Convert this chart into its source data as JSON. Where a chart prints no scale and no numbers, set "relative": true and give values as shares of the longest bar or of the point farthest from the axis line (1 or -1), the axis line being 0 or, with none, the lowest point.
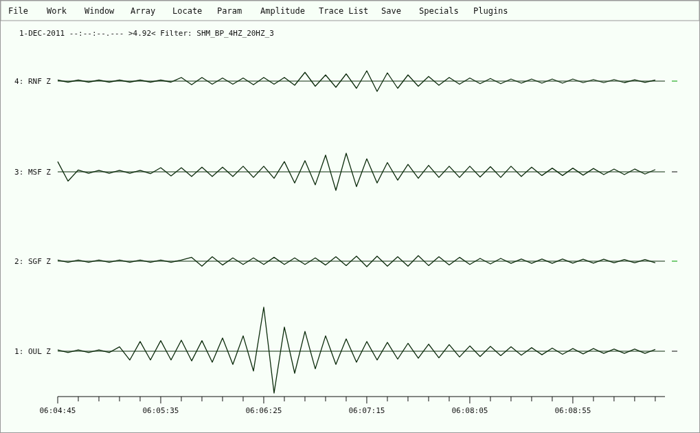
{
  "chart_data": [
    {
      "type": "other",
      "annotations": [
        "File",
        "Work",
        "Window",
        "Array",
        "Locate",
        "Param",
        "Amplitude",
        "Trace List",
        "Save",
        "Specials",
        "Plugins"
      ]
    },
    {
      "type": "line",
      "relative": true,
      "tick_labels": false,
      "title": "1-DEC-2011 --:--:--.---   >4.92<    Filter: SHM_BP_4HZ_20HZ_3",
      "xlim": [
        6.079167,
        6.16103
      ],
      "x": [
        6.079167,
        6.080556,
        6.081944,
        6.083333,
        6.084722,
        6.086111,
        6.0875,
        6.088889,
        6.090278,
        6.091667,
        6.093056,
        6.094444,
        6.095833,
        6.097222,
        6.098611,
        6.1,
        6.101389,
        6.102778,
        6.104167,
        6.105556,
        6.106944,
        6.108333,
        6.109722,
        6.111111,
        6.1125,
        6.113889,
        6.115278,
        6.116667,
        6.118056,
        6.119444,
        6.120833,
        6.122222,
        6.123611,
        6.125,
        6.126389,
        6.127778,
        6.129167,
        6.130556,
        6.131944,
        6.133333,
        6.134722,
        6.136111,
        6.1375,
        6.138889,
        6.140278,
        6.141667,
        6.143056,
        6.144444,
        6.145833,
        6.147222,
        6.148611,
        6.15,
        6.151389,
        6.152778,
        6.154167,
        6.155556,
        6.156944,
        6.158333,
        6.159722
      ],
      "series": [
        {
          "name": "4: RNF Z",
          "color": "#0b2b0b",
          "values": [
            0.1,
            -0.1,
            0.1,
            -0.1,
            0.1,
            -0.1,
            0.1,
            -0.1,
            0.1,
            -0.1,
            0.1,
            -0.1,
            0.35,
            -0.35,
            0.35,
            -0.3,
            0.3,
            -0.3,
            0.3,
            -0.35,
            0.35,
            -0.3,
            0.35,
            -0.4,
            0.85,
            -0.5,
            0.6,
            -0.6,
            0.7,
            -0.7,
            1,
            -1,
            0.8,
            -0.7,
            0.6,
            -0.5,
            0.45,
            -0.4,
            0.35,
            -0.3,
            0.3,
            -0.25,
            0.25,
            -0.25,
            0.2,
            -0.2,
            0.2,
            -0.2,
            0.2,
            -0.2,
            0.2,
            -0.15,
            0.15,
            -0.15,
            0.15,
            -0.15,
            0.12,
            -0.12,
            0.1
          ]
        }
      ]
    },
    {
      "type": "line",
      "relative": true,
      "tick_labels": false,
      "xlim": [
        6.079167,
        6.16103
      ],
      "x": [
        6.079167,
        6.080556,
        6.081944,
        6.083333,
        6.084722,
        6.086111,
        6.0875,
        6.088889,
        6.090278,
        6.091667,
        6.093056,
        6.094444,
        6.095833,
        6.097222,
        6.098611,
        6.1,
        6.101389,
        6.102778,
        6.104167,
        6.105556,
        6.106944,
        6.108333,
        6.109722,
        6.111111,
        6.1125,
        6.113889,
        6.115278,
        6.116667,
        6.118056,
        6.119444,
        6.120833,
        6.122222,
        6.123611,
        6.125,
        6.126389,
        6.127778,
        6.129167,
        6.130556,
        6.131944,
        6.133333,
        6.134722,
        6.136111,
        6.1375,
        6.138889,
        6.140278,
        6.141667,
        6.143056,
        6.144444,
        6.145833,
        6.147222,
        6.148611,
        6.15,
        6.151389,
        6.152778,
        6.154167,
        6.155556,
        6.156944,
        6.158333,
        6.159722
      ],
      "series": [
        {
          "name": "3: MSF Z",
          "color": "#0b2b0b",
          "values": [
            0.55,
            -0.5,
            0.1,
            -0.08,
            0.08,
            -0.08,
            0.08,
            -0.08,
            0.08,
            -0.1,
            0.22,
            -0.22,
            0.22,
            -0.25,
            0.25,
            -0.25,
            0.25,
            -0.25,
            0.3,
            -0.3,
            0.3,
            -0.35,
            0.55,
            -0.6,
            0.6,
            -0.7,
            0.9,
            -1,
            1,
            -0.8,
            0.7,
            -0.6,
            0.5,
            -0.45,
            0.4,
            -0.35,
            0.35,
            -0.3,
            0.3,
            -0.3,
            0.3,
            -0.28,
            0.28,
            -0.3,
            0.3,
            -0.25,
            0.25,
            -0.2,
            0.2,
            -0.2,
            0.2,
            -0.18,
            0.18,
            -0.15,
            0.15,
            -0.15,
            0.15,
            -0.12,
            0.12
          ]
        }
      ]
    },
    {
      "type": "line",
      "relative": true,
      "tick_labels": false,
      "xlim": [
        6.079167,
        6.16103
      ],
      "x": [
        6.079167,
        6.080556,
        6.081944,
        6.083333,
        6.084722,
        6.086111,
        6.0875,
        6.088889,
        6.090278,
        6.091667,
        6.093056,
        6.094444,
        6.095833,
        6.097222,
        6.098611,
        6.1,
        6.101389,
        6.102778,
        6.104167,
        6.105556,
        6.106944,
        6.108333,
        6.109722,
        6.111111,
        6.1125,
        6.113889,
        6.115278,
        6.116667,
        6.118056,
        6.119444,
        6.120833,
        6.122222,
        6.123611,
        6.125,
        6.126389,
        6.127778,
        6.129167,
        6.130556,
        6.131944,
        6.133333,
        6.134722,
        6.136111,
        6.1375,
        6.138889,
        6.140278,
        6.141667,
        6.143056,
        6.144444,
        6.145833,
        6.147222,
        6.148611,
        6.15,
        6.151389,
        6.152778,
        6.154167,
        6.155556,
        6.156944,
        6.158333,
        6.159722
      ],
      "series": [
        {
          "name": "2: SGF Z",
          "color": "#0b2b0b",
          "values": [
            0.2,
            -0.2,
            0.2,
            -0.2,
            0.2,
            -0.2,
            0.2,
            -0.2,
            0.2,
            -0.2,
            0.2,
            -0.2,
            0.2,
            0.7,
            -0.9,
            0.8,
            -0.7,
            0.6,
            -0.6,
            0.6,
            -0.6,
            0.7,
            -0.6,
            0.6,
            -0.6,
            0.6,
            -0.7,
            0.8,
            -0.8,
            0.9,
            -1,
            0.9,
            -0.9,
            0.8,
            -0.9,
            1,
            -0.8,
            0.8,
            -0.7,
            0.7,
            -0.6,
            0.5,
            -0.5,
            0.5,
            -0.4,
            0.4,
            -0.4,
            0.4,
            -0.4,
            0.4,
            -0.35,
            0.35,
            -0.35,
            0.35,
            -0.3,
            0.3,
            -0.3,
            0.3,
            -0.3
          ]
        }
      ]
    },
    {
      "type": "line",
      "relative": true,
      "tick_labels": "x",
      "xlim": [
        6.079167,
        6.16103
      ],
      "xticks": [
        {
          "value": 6.079167,
          "label": "06:04:45"
        },
        {
          "value": 6.081944,
          "label": null
        },
        {
          "value": 6.084722,
          "label": null
        },
        {
          "value": 6.0875,
          "label": null
        },
        {
          "value": 6.090278,
          "label": null
        },
        {
          "value": 6.093056,
          "label": "06:05:35"
        },
        {
          "value": 6.095833,
          "label": null
        },
        {
          "value": 6.098611,
          "label": null
        },
        {
          "value": 6.101389,
          "label": null
        },
        {
          "value": 6.104167,
          "label": null
        },
        {
          "value": 6.106944,
          "label": "06:06:25"
        },
        {
          "value": 6.109722,
          "label": null
        },
        {
          "value": 6.1125,
          "label": null
        },
        {
          "value": 6.115278,
          "label": null
        },
        {
          "value": 6.118056,
          "label": null
        },
        {
          "value": 6.120833,
          "label": "06:07:15"
        },
        {
          "value": 6.123611,
          "label": null
        },
        {
          "value": 6.126389,
          "label": null
        },
        {
          "value": 6.129167,
          "label": null
        },
        {
          "value": 6.131944,
          "label": null
        },
        {
          "value": 6.134722,
          "label": "06:08:05"
        },
        {
          "value": 6.1375,
          "label": null
        },
        {
          "value": 6.140278,
          "label": null
        },
        {
          "value": 6.143056,
          "label": null
        },
        {
          "value": 6.145833,
          "label": null
        },
        {
          "value": 6.148611,
          "label": "06:08:55"
        },
        {
          "value": 6.151389,
          "label": null
        },
        {
          "value": 6.154167,
          "label": null
        },
        {
          "value": 6.156944,
          "label": null
        },
        {
          "value": 6.159722,
          "label": null
        }
      ],
      "x": [
        6.079167,
        6.080556,
        6.081944,
        6.083333,
        6.084722,
        6.086111,
        6.0875,
        6.088889,
        6.090278,
        6.091667,
        6.093056,
        6.094444,
        6.095833,
        6.097222,
        6.098611,
        6.1,
        6.101389,
        6.102778,
        6.104167,
        6.105556,
        6.106944,
        6.108333,
        6.109722,
        6.111111,
        6.1125,
        6.113889,
        6.115278,
        6.116667,
        6.118056,
        6.119444,
        6.120833,
        6.122222,
        6.123611,
        6.125,
        6.126389,
        6.127778,
        6.129167,
        6.130556,
        6.131944,
        6.133333,
        6.134722,
        6.136111,
        6.1375,
        6.138889,
        6.140278,
        6.141667,
        6.143056,
        6.144444,
        6.145833,
        6.147222,
        6.148611,
        6.15,
        6.151389,
        6.152778,
        6.154167,
        6.155556,
        6.156944,
        6.158333,
        6.159722
      ],
      "series": [
        {
          "name": "1: OUL Z",
          "color": "#0b2b0b",
          "values": [
            0.03,
            -0.03,
            0.03,
            -0.03,
            0.03,
            -0.03,
            0.1,
            -0.2,
            0.22,
            -0.2,
            0.24,
            -0.2,
            0.25,
            -0.22,
            0.24,
            -0.25,
            0.3,
            -0.3,
            0.35,
            -0.45,
            1,
            -0.95,
            0.55,
            -0.5,
            0.45,
            -0.4,
            0.35,
            -0.3,
            0.28,
            -0.25,
            0.22,
            -0.2,
            0.2,
            -0.18,
            0.18,
            -0.16,
            0.16,
            -0.15,
            0.15,
            -0.13,
            0.12,
            -0.12,
            0.11,
            -0.1,
            0.1,
            -0.09,
            0.08,
            -0.08,
            0.07,
            -0.07,
            0.06,
            -0.06,
            0.06,
            -0.05,
            0.05,
            -0.05,
            0.05,
            -0.05,
            0.04
          ]
        }
      ]
    }
  ]
}
